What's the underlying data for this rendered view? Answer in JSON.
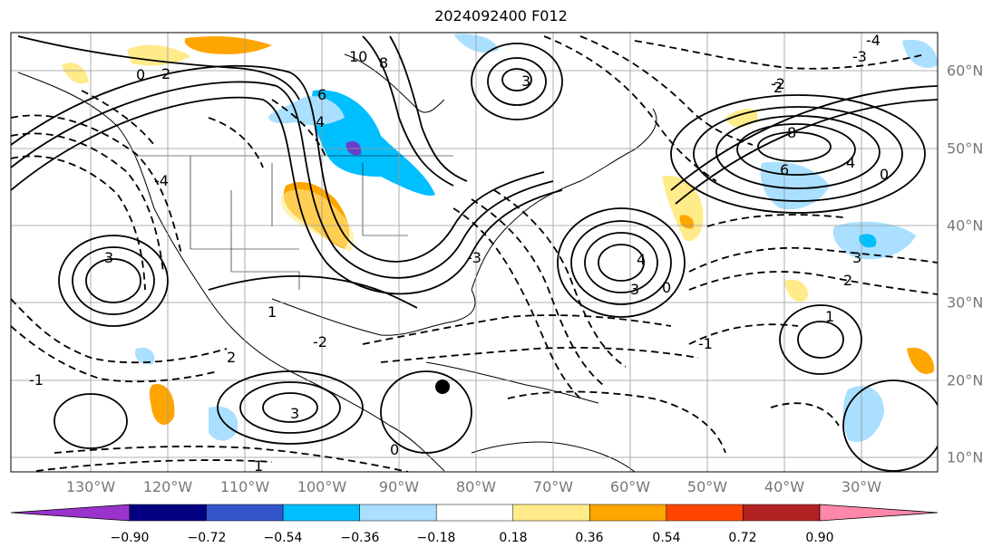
{
  "title": "2024092400 F012",
  "longitude_labels": [
    "130°W",
    "120°W",
    "110°W",
    "100°W",
    "90°W",
    "80°W",
    "70°W",
    "60°W",
    "50°W",
    "40°W",
    "30°W"
  ],
  "latitude_labels": [
    "60°N",
    "50°N",
    "40°N",
    "30°N",
    "20°N",
    "10°N"
  ],
  "contour_labels": [
    "10",
    "8",
    "6",
    "4",
    "3",
    "2",
    "1",
    "0",
    "-1",
    "-2",
    "-3",
    "-4",
    "8",
    "6",
    "4",
    "4",
    "3",
    "3",
    "3",
    "3",
    "2",
    "2",
    "1",
    "0",
    "0",
    "-1",
    "-2",
    "-3",
    "-4",
    "2",
    "1",
    "0"
  ],
  "colorbar": {
    "tick_labels": [
      "−0.90",
      "−0.72",
      "−0.54",
      "−0.36",
      "−0.18",
      "0.18",
      "0.36",
      "0.54",
      "0.72",
      "0.90"
    ],
    "colors": [
      "#9933cc",
      "#000080",
      "#3355cc",
      "#00bfff",
      "#aadfff",
      "#ffffff",
      "#ffeb8a",
      "#ffa500",
      "#ff4500",
      "#b22222",
      "#ff88aa"
    ]
  },
  "shading_colors": {
    "light_blue": "#aadfff",
    "blue": "#00bfff",
    "purple": "#6a3dc8",
    "light_yellow": "#ffeb8a",
    "orange": "#ffa500"
  },
  "marker": "black-dot"
}
